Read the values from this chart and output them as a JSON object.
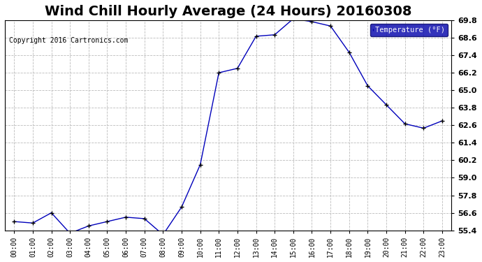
{
  "title": "Wind Chill Hourly Average (24 Hours) 20160308",
  "copyright": "Copyright 2016 Cartronics.com",
  "legend_label": "Temperature (°F)",
  "x_labels": [
    "00:00",
    "01:00",
    "02:00",
    "03:00",
    "04:00",
    "05:00",
    "06:00",
    "07:00",
    "08:00",
    "09:00",
    "10:00",
    "11:00",
    "12:00",
    "13:00",
    "14:00",
    "15:00",
    "16:00",
    "17:00",
    "18:00",
    "19:00",
    "20:00",
    "21:00",
    "22:00",
    "23:00"
  ],
  "y_values": [
    56.0,
    55.9,
    56.6,
    55.2,
    55.7,
    56.0,
    56.3,
    56.2,
    55.1,
    57.0,
    59.9,
    66.2,
    66.5,
    68.7,
    68.8,
    69.9,
    69.7,
    69.4,
    67.6,
    65.3,
    64.0,
    62.7,
    62.4,
    62.9
  ],
  "ylim": [
    55.4,
    69.8
  ],
  "yticks": [
    55.4,
    56.6,
    57.8,
    59.0,
    60.2,
    61.4,
    62.6,
    63.8,
    65.0,
    66.2,
    67.4,
    68.6,
    69.8
  ],
  "line_color": "#0000bb",
  "marker": "+",
  "background_color": "#ffffff",
  "grid_color": "#bbbbbb",
  "title_fontsize": 14,
  "title_fontweight": "bold",
  "legend_bg": "#0000aa",
  "legend_text_color": "#ffffff"
}
